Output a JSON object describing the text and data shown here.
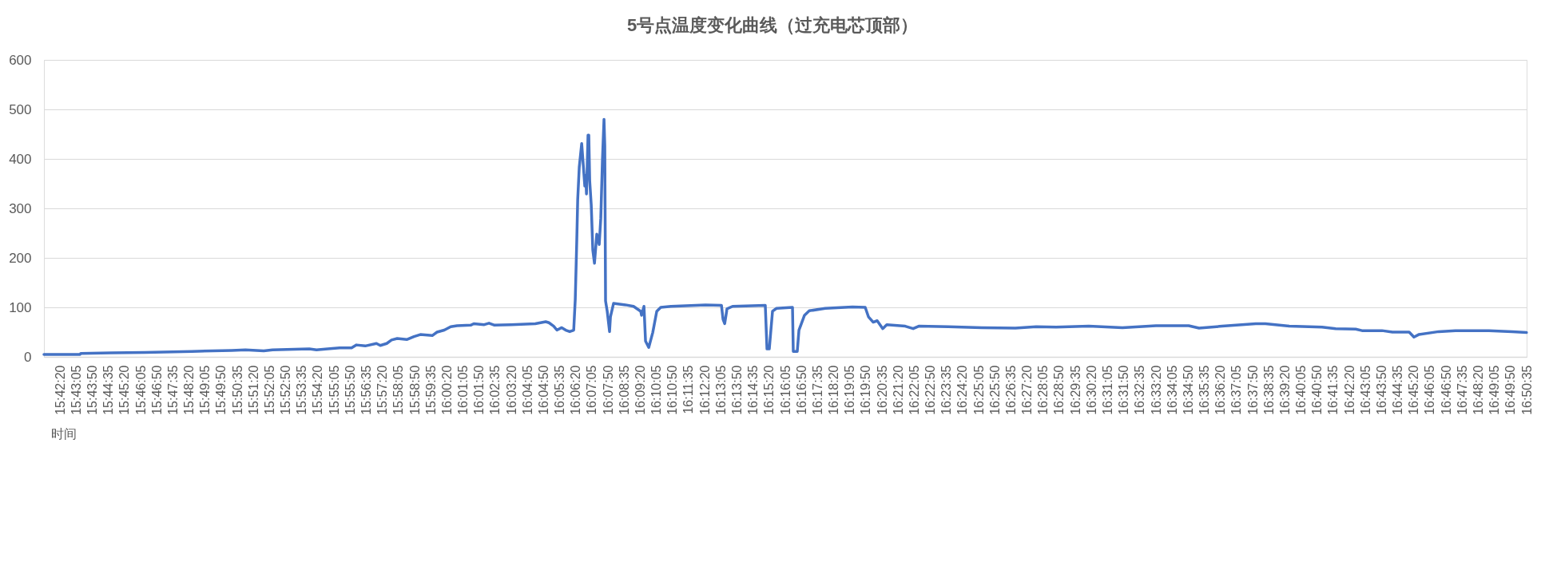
{
  "chart_data": {
    "type": "line",
    "title": "5号点温度变化曲线（过充电芯顶部）",
    "xlabel": "时间",
    "x": [
      15.6931,
      15.7211,
      15.7217,
      15.7453,
      15.7713,
      15.8078,
      15.8388,
      15.8494,
      15.8636,
      15.8704,
      15.8989,
      15.9045,
      15.9132,
      15.9225,
      15.9317,
      15.9355,
      15.9423,
      15.951,
      15.954,
      15.959,
      15.9627,
      15.9671,
      15.9745,
      15.9801,
      15.985,
      15.9943,
      15.998,
      16.0036,
      16.0086,
      16.0135,
      16.0241,
      16.0265,
      16.0346,
      16.0383,
      16.0426,
      16.0556,
      16.0742,
      16.0823,
      16.0848,
      16.0885,
      16.091,
      16.0947,
      16.0978,
      16.1009,
      16.104,
      16.1052,
      16.1064,
      16.1071,
      16.1083,
      16.1102,
      16.1114,
      16.1126,
      16.1133,
      16.1139,
      16.1151,
      16.1157,
      16.1164,
      16.1176,
      16.1188,
      16.1201,
      16.1219,
      16.1238,
      16.125,
      16.1263,
      16.1275,
      16.1281,
      16.1287,
      16.13,
      16.1318,
      16.1325,
      16.1349,
      16.1442,
      16.1504,
      16.156,
      16.1566,
      16.1585,
      16.1597,
      16.1622,
      16.1653,
      16.1684,
      16.1715,
      16.1795,
      16.2062,
      16.2186,
      16.2198,
      16.2211,
      16.2229,
      16.2272,
      16.2526,
      16.2539,
      16.2557,
      16.2582,
      16.2613,
      16.2737,
      16.2743,
      16.2774,
      16.2787,
      16.283,
      16.2867,
      16.2991,
      16.3202,
      16.3301,
      16.3326,
      16.3363,
      16.3394,
      16.3437,
      16.3468,
      16.3611,
      16.3673,
      16.3716,
      16.3945,
      16.4205,
      16.4466,
      16.4627,
      16.4782,
      16.5035,
      16.5296,
      16.5556,
      16.581,
      16.589,
      16.607,
      16.633,
      16.6405,
      16.659,
      16.6844,
      16.695,
      16.7105,
      16.7154,
      16.7309,
      16.739,
      16.752,
      16.7557,
      16.7594,
      16.7749,
      16.7879,
      16.8139,
      16.8319,
      16.843
    ],
    "series": [
      {
        "color": "#4472c4",
        "values": [
          5,
          5,
          7,
          8,
          9,
          11,
          13,
          14,
          12,
          14,
          16,
          14,
          16,
          18,
          18,
          24,
          22,
          27,
          23,
          27,
          34,
          37,
          35,
          41,
          45,
          43,
          50,
          54,
          61,
          63,
          64,
          67,
          65,
          68,
          64,
          65,
          67,
          71,
          69,
          62,
          54,
          59,
          54,
          51,
          54,
          116,
          237,
          318,
          383,
          431,
          388,
          345,
          367,
          329,
          448,
          448,
          356,
          307,
          216,
          189,
          248,
          227,
          280,
          399,
          480,
          426,
          113,
          92,
          51,
          81,
          108,
          105,
          102,
          92,
          84,
          102,
          32,
          19,
          49,
          92,
          100,
          102,
          105,
          104,
          76,
          67,
          97,
          102,
          104,
          16,
          16,
          92,
          98,
          100,
          11,
          11,
          54,
          84,
          93,
          98,
          101,
          100,
          81,
          70,
          73,
          57,
          65,
          62,
          57,
          62,
          61,
          59,
          58,
          61,
          60,
          62,
          59,
          63,
          63,
          58,
          62,
          67,
          67,
          62,
          60,
          57,
          56,
          53,
          53,
          50,
          50,
          40,
          45,
          51,
          53,
          53,
          51,
          49
        ]
      }
    ],
    "xlim": [
      15.6931,
      16.8431
    ],
    "xticks": [
      {
        "value": 15.7056,
        "label": "15:42:20"
      },
      {
        "value": 15.7181,
        "label": "15:43:05"
      },
      {
        "value": 15.7306,
        "label": "15:43:50"
      },
      {
        "value": 15.7431,
        "label": "15:44:35"
      },
      {
        "value": 15.7556,
        "label": "15:45:20"
      },
      {
        "value": 15.7681,
        "label": "15:46:05"
      },
      {
        "value": 15.7806,
        "label": "15:46:50"
      },
      {
        "value": 15.7931,
        "label": "15:47:35"
      },
      {
        "value": 15.8056,
        "label": "15:48:20"
      },
      {
        "value": 15.8181,
        "label": "15:49:05"
      },
      {
        "value": 15.8306,
        "label": "15:49:50"
      },
      {
        "value": 15.8431,
        "label": "15:50:35"
      },
      {
        "value": 15.8556,
        "label": "15:51:20"
      },
      {
        "value": 15.8681,
        "label": "15:52:05"
      },
      {
        "value": 15.8806,
        "label": "15:52:50"
      },
      {
        "value": 15.8931,
        "label": "15:53:35"
      },
      {
        "value": 15.9056,
        "label": "15:54:20"
      },
      {
        "value": 15.9181,
        "label": "15:55:05"
      },
      {
        "value": 15.9306,
        "label": "15:55:50"
      },
      {
        "value": 15.9431,
        "label": "15:56:35"
      },
      {
        "value": 15.9556,
        "label": "15:57:20"
      },
      {
        "value": 15.9681,
        "label": "15:58:05"
      },
      {
        "value": 15.9806,
        "label": "15:58:50"
      },
      {
        "value": 15.9931,
        "label": "15:59:35"
      },
      {
        "value": 16.0056,
        "label": "16:00:20"
      },
      {
        "value": 16.0181,
        "label": "16:01:05"
      },
      {
        "value": 16.0306,
        "label": "16:01:50"
      },
      {
        "value": 16.0431,
        "label": "16:02:35"
      },
      {
        "value": 16.0556,
        "label": "16:03:20"
      },
      {
        "value": 16.0681,
        "label": "16:04:05"
      },
      {
        "value": 16.0806,
        "label": "16:04:50"
      },
      {
        "value": 16.0931,
        "label": "16:05:35"
      },
      {
        "value": 16.1056,
        "label": "16:06:20"
      },
      {
        "value": 16.1181,
        "label": "16:07:05"
      },
      {
        "value": 16.1306,
        "label": "16:07:50"
      },
      {
        "value": 16.1431,
        "label": "16:08:35"
      },
      {
        "value": 16.1556,
        "label": "16:09:20"
      },
      {
        "value": 16.1681,
        "label": "16:10:05"
      },
      {
        "value": 16.1806,
        "label": "16:10:50"
      },
      {
        "value": 16.1931,
        "label": "16:11:35"
      },
      {
        "value": 16.2056,
        "label": "16:12:20"
      },
      {
        "value": 16.2181,
        "label": "16:13:05"
      },
      {
        "value": 16.2306,
        "label": "16:13:50"
      },
      {
        "value": 16.2431,
        "label": "16:14:35"
      },
      {
        "value": 16.2556,
        "label": "16:15:20"
      },
      {
        "value": 16.2681,
        "label": "16:16:05"
      },
      {
        "value": 16.2806,
        "label": "16:16:50"
      },
      {
        "value": 16.2931,
        "label": "16:17:35"
      },
      {
        "value": 16.3056,
        "label": "16:18:20"
      },
      {
        "value": 16.3181,
        "label": "16:19:05"
      },
      {
        "value": 16.3306,
        "label": "16:19:50"
      },
      {
        "value": 16.3431,
        "label": "16:20:35"
      },
      {
        "value": 16.3556,
        "label": "16:21:20"
      },
      {
        "value": 16.3681,
        "label": "16:22:05"
      },
      {
        "value": 16.3806,
        "label": "16:22:50"
      },
      {
        "value": 16.3931,
        "label": "16:23:35"
      },
      {
        "value": 16.4056,
        "label": "16:24:20"
      },
      {
        "value": 16.4181,
        "label": "16:25:05"
      },
      {
        "value": 16.4306,
        "label": "16:25:50"
      },
      {
        "value": 16.4431,
        "label": "16:26:35"
      },
      {
        "value": 16.4556,
        "label": "16:27:20"
      },
      {
        "value": 16.4681,
        "label": "16:28:05"
      },
      {
        "value": 16.4806,
        "label": "16:28:50"
      },
      {
        "value": 16.4931,
        "label": "16:29:35"
      },
      {
        "value": 16.5056,
        "label": "16:30:20"
      },
      {
        "value": 16.5181,
        "label": "16:31:05"
      },
      {
        "value": 16.5306,
        "label": "16:31:50"
      },
      {
        "value": 16.5431,
        "label": "16:32:35"
      },
      {
        "value": 16.5556,
        "label": "16:33:20"
      },
      {
        "value": 16.5681,
        "label": "16:34:05"
      },
      {
        "value": 16.5806,
        "label": "16:34:50"
      },
      {
        "value": 16.5931,
        "label": "16:35:35"
      },
      {
        "value": 16.6056,
        "label": "16:36:20"
      },
      {
        "value": 16.6181,
        "label": "16:37:05"
      },
      {
        "value": 16.6306,
        "label": "16:37:50"
      },
      {
        "value": 16.6431,
        "label": "16:38:35"
      },
      {
        "value": 16.6556,
        "label": "16:39:20"
      },
      {
        "value": 16.6681,
        "label": "16:40:05"
      },
      {
        "value": 16.6806,
        "label": "16:40:50"
      },
      {
        "value": 16.6931,
        "label": "16:41:35"
      },
      {
        "value": 16.7056,
        "label": "16:42:20"
      },
      {
        "value": 16.7181,
        "label": "16:43:05"
      },
      {
        "value": 16.7306,
        "label": "16:43:50"
      },
      {
        "value": 16.7431,
        "label": "16:44:35"
      },
      {
        "value": 16.7556,
        "label": "16:45:20"
      },
      {
        "value": 16.7681,
        "label": "16:46:05"
      },
      {
        "value": 16.7806,
        "label": "16:46:50"
      },
      {
        "value": 16.7931,
        "label": "16:47:35"
      },
      {
        "value": 16.8056,
        "label": "16:48:20"
      },
      {
        "value": 16.8181,
        "label": "16:49:05"
      },
      {
        "value": 16.8306,
        "label": "16:49:50"
      },
      {
        "value": 16.8431,
        "label": "16:50:35"
      }
    ],
    "ylim": [
      0,
      600
    ],
    "yticks": [
      0,
      100,
      200,
      300,
      400,
      500,
      600
    ],
    "grid": "y"
  }
}
